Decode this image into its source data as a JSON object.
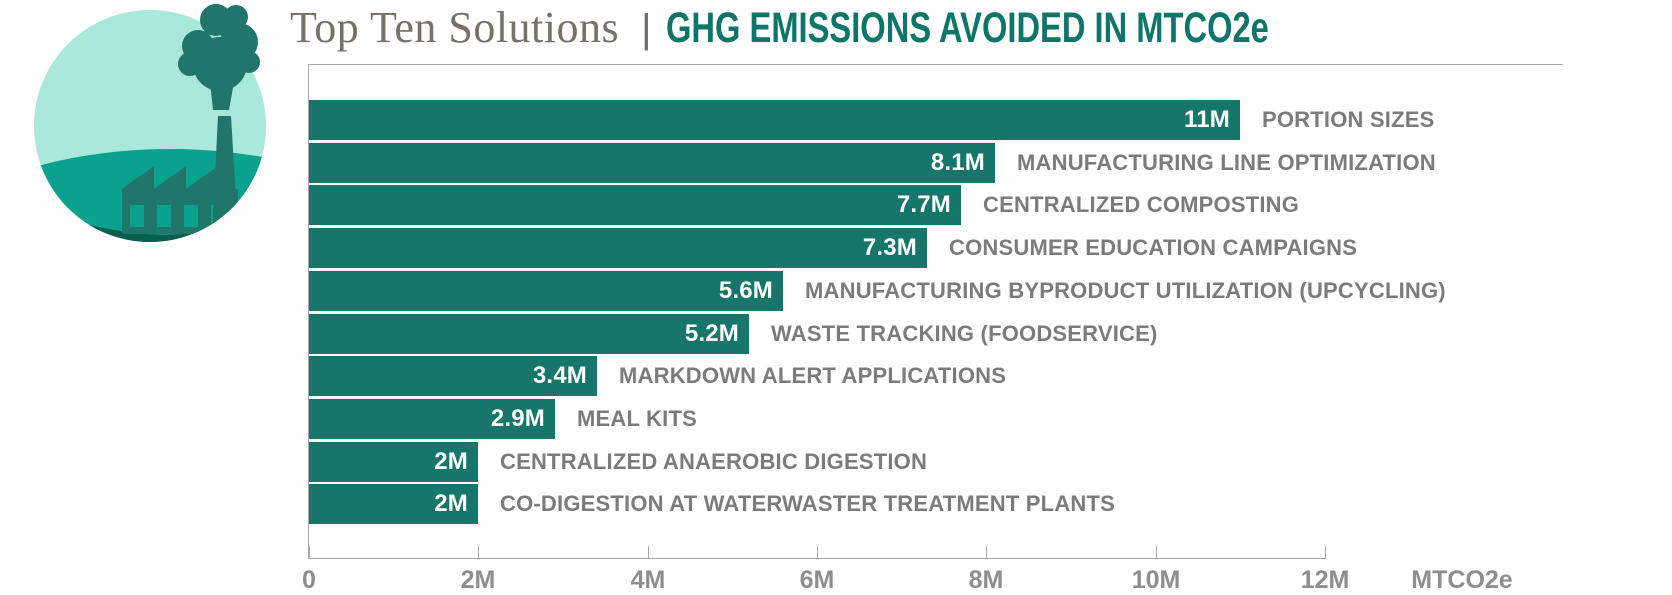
{
  "header": {
    "title_serif": "Top Ten Solutions",
    "separator": "|",
    "title_bold": "GHG EMISSIONS AVOIDED IN MTCO2e"
  },
  "icon": {
    "name": "factory-emissions-icon",
    "colors": {
      "sky": "#A9E8DB",
      "mid_hill": "#0AA28F",
      "dark_hill": "#095F4E",
      "factory": "#20766A"
    }
  },
  "chart_data": {
    "type": "bar",
    "orientation": "horizontal",
    "title": "Top Ten Solutions | GHG EMISSIONS AVOIDED IN MTCO2e",
    "categories": [
      "PORTION SIZES",
      "MANUFACTURING LINE OPTIMIZATION",
      "CENTRALIZED COMPOSTING",
      "CONSUMER EDUCATION CAMPAIGNS",
      "MANUFACTURING BYPRODUCT UTILIZATION (UPCYCLING)",
      "WASTE TRACKING (FOODSERVICE)",
      "MARKDOWN ALERT APPLICATIONS",
      "MEAL KITS",
      "CENTRALIZED ANAEROBIC DIGESTION",
      "CO-DIGESTION AT WATERWASTER TREATMENT PLANTS"
    ],
    "values": [
      11,
      8.1,
      7.7,
      7.3,
      5.6,
      5.2,
      3.4,
      2.9,
      2,
      2
    ],
    "value_labels": [
      "11M",
      "8.1M",
      "7.7M",
      "7.3M",
      "5.6M",
      "5.2M",
      "3.4M",
      "2.9M",
      "2M",
      "2M"
    ],
    "xlabel": "MTCO2e",
    "xlim": [
      0,
      12
    ],
    "x_ticks": [
      "0",
      "2M",
      "4M",
      "6M",
      "8M",
      "10M",
      "12M"
    ],
    "x_tick_values": [
      0,
      2,
      4,
      6,
      8,
      10,
      12
    ],
    "grid": false,
    "legend": false,
    "bar_color": "#17766A",
    "value_label_color": "#FFFFFF",
    "category_label_color": "#7B7B7B",
    "axis_color": "#A8A8A8"
  }
}
